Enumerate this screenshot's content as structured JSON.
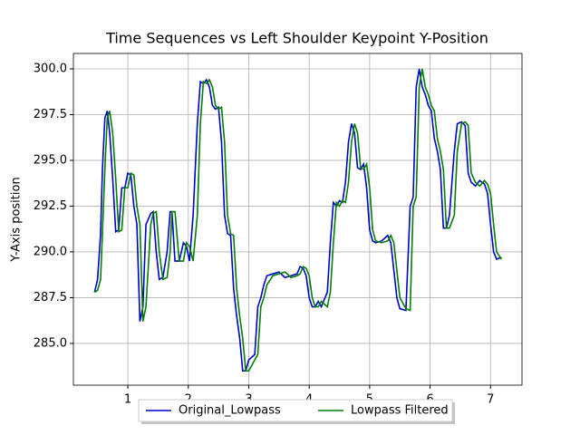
{
  "chart_data": {
    "type": "line",
    "title": "Time Sequences vs Left Shoulder Keypoint Y-Position",
    "y_label": "Y-Axis position",
    "x": [
      0.45,
      0.5,
      0.55,
      0.58,
      0.62,
      0.66,
      0.7,
      0.75,
      0.8,
      0.85,
      0.9,
      0.95,
      1.0,
      1.05,
      1.1,
      1.15,
      1.2,
      1.25,
      1.3,
      1.38,
      1.42,
      1.47,
      1.52,
      1.58,
      1.65,
      1.7,
      1.73,
      1.78,
      1.85,
      1.92,
      1.97,
      2.02,
      2.08,
      2.15,
      2.2,
      2.25,
      2.3,
      2.35,
      2.4,
      2.45,
      2.5,
      2.55,
      2.6,
      2.65,
      2.7,
      2.75,
      2.8,
      2.85,
      2.9,
      2.95,
      3.0,
      3.1,
      3.15,
      3.2,
      3.25,
      3.3,
      3.4,
      3.5,
      3.6,
      3.7,
      3.8,
      3.85,
      3.9,
      3.95,
      4.0,
      4.05,
      4.1,
      4.15,
      4.2,
      4.3,
      4.35,
      4.4,
      4.45,
      4.5,
      4.55,
      4.6,
      4.65,
      4.7,
      4.75,
      4.8,
      4.85,
      4.9,
      4.95,
      5.0,
      5.05,
      5.1,
      5.2,
      5.3,
      5.35,
      5.4,
      5.45,
      5.5,
      5.6,
      5.67,
      5.72,
      5.77,
      5.82,
      5.87,
      5.92,
      5.97,
      6.02,
      6.07,
      6.12,
      6.17,
      6.22,
      6.27,
      6.32,
      6.4,
      6.45,
      6.52,
      6.58,
      6.63,
      6.68,
      6.75,
      6.82,
      6.9,
      6.95,
      7.0,
      7.05,
      7.1,
      7.18
    ],
    "series": [
      {
        "name": "Original_Lowpass",
        "color": "#0000cc",
        "values": [
          287.8,
          288.5,
          291,
          294.5,
          297.3,
          297.7,
          296.5,
          294,
          291.1,
          291.2,
          293.5,
          293.5,
          294.3,
          294.2,
          292.5,
          291.5,
          286.2,
          287,
          291.5,
          292.1,
          292.2,
          290,
          288.5,
          288.6,
          290,
          292.2,
          292.2,
          289.5,
          289.5,
          290.5,
          290.3,
          289.5,
          292,
          297,
          299.3,
          299.2,
          299.4,
          299,
          298,
          297.8,
          297.9,
          296,
          292,
          291,
          290.9,
          288,
          286.5,
          285.3,
          283.5,
          283.5,
          284.1,
          284.4,
          287,
          287.5,
          288.2,
          288.7,
          288.8,
          288.9,
          288.6,
          288.7,
          288.8,
          289.2,
          289.1,
          288.7,
          287.5,
          287,
          287,
          287.3,
          287,
          287.8,
          290.5,
          292.7,
          292.5,
          292.8,
          292.7,
          293.8,
          296,
          297,
          296.5,
          294.6,
          294.5,
          294.8,
          293.5,
          291.2,
          290.6,
          290.5,
          290.6,
          290.9,
          290.5,
          289,
          287.5,
          286.9,
          286.8,
          292.5,
          293,
          299,
          300,
          299,
          298.6,
          298,
          297.7,
          296.2,
          295.5,
          294.5,
          291.3,
          291.3,
          292,
          295.5,
          297,
          297.1,
          296.9,
          294.3,
          293.8,
          293.6,
          293.9,
          293.7,
          293.2,
          291.5,
          290,
          289.6,
          289.7
        ]
      },
      {
        "name": "Lowpass Filtered",
        "color": "#008000",
        "values": [
          287.8,
          287.9,
          288.5,
          291,
          294.5,
          297.3,
          297.7,
          296.5,
          294,
          291.1,
          291.2,
          293.5,
          293.5,
          294.3,
          294.2,
          292.5,
          291.5,
          286.2,
          287,
          291.5,
          292.1,
          292.2,
          290,
          288.5,
          288.6,
          290,
          292.2,
          292.2,
          289.5,
          289.5,
          290.5,
          290.3,
          289.5,
          292,
          297,
          299.3,
          299.2,
          299.4,
          299,
          298,
          297.8,
          297.9,
          296,
          292,
          291,
          290.9,
          288,
          286.5,
          285.3,
          283.5,
          283.5,
          284.1,
          284.4,
          287,
          287.5,
          288.2,
          288.7,
          288.8,
          288.9,
          288.6,
          288.7,
          288.8,
          289.2,
          289.1,
          288.7,
          287.5,
          287,
          287,
          287.3,
          287,
          287.8,
          290.5,
          292.7,
          292.5,
          292.8,
          292.7,
          293.8,
          296,
          297,
          296.5,
          294.6,
          294.5,
          294.8,
          293.5,
          291.2,
          290.6,
          290.5,
          290.6,
          290.9,
          290.5,
          289,
          287.5,
          286.9,
          286.8,
          292.5,
          293,
          299,
          300,
          299,
          298.6,
          298,
          297.7,
          296.2,
          295.5,
          294.5,
          291.3,
          291.3,
          292,
          295.5,
          297,
          297.1,
          296.9,
          294.3,
          293.8,
          293.6,
          293.9,
          293.7,
          293.2,
          291.5,
          290,
          289.6
        ]
      }
    ],
    "xlim": [
      0.1,
      7.52
    ],
    "ylim": [
      282.72,
      300.84
    ],
    "xticks": [
      1,
      2,
      3,
      4,
      5,
      6,
      7
    ],
    "yticks": [
      {
        "value": 285,
        "label": "285.0"
      },
      {
        "value": 287.5,
        "label": "287.5"
      },
      {
        "value": 290,
        "label": "290.0"
      },
      {
        "value": 292.5,
        "label": "292.5"
      },
      {
        "value": 295,
        "label": "295.0"
      },
      {
        "value": 297.5,
        "label": "297.5"
      },
      {
        "value": 300,
        "label": "300.0"
      }
    ],
    "grid": true,
    "legend": "lower center"
  }
}
